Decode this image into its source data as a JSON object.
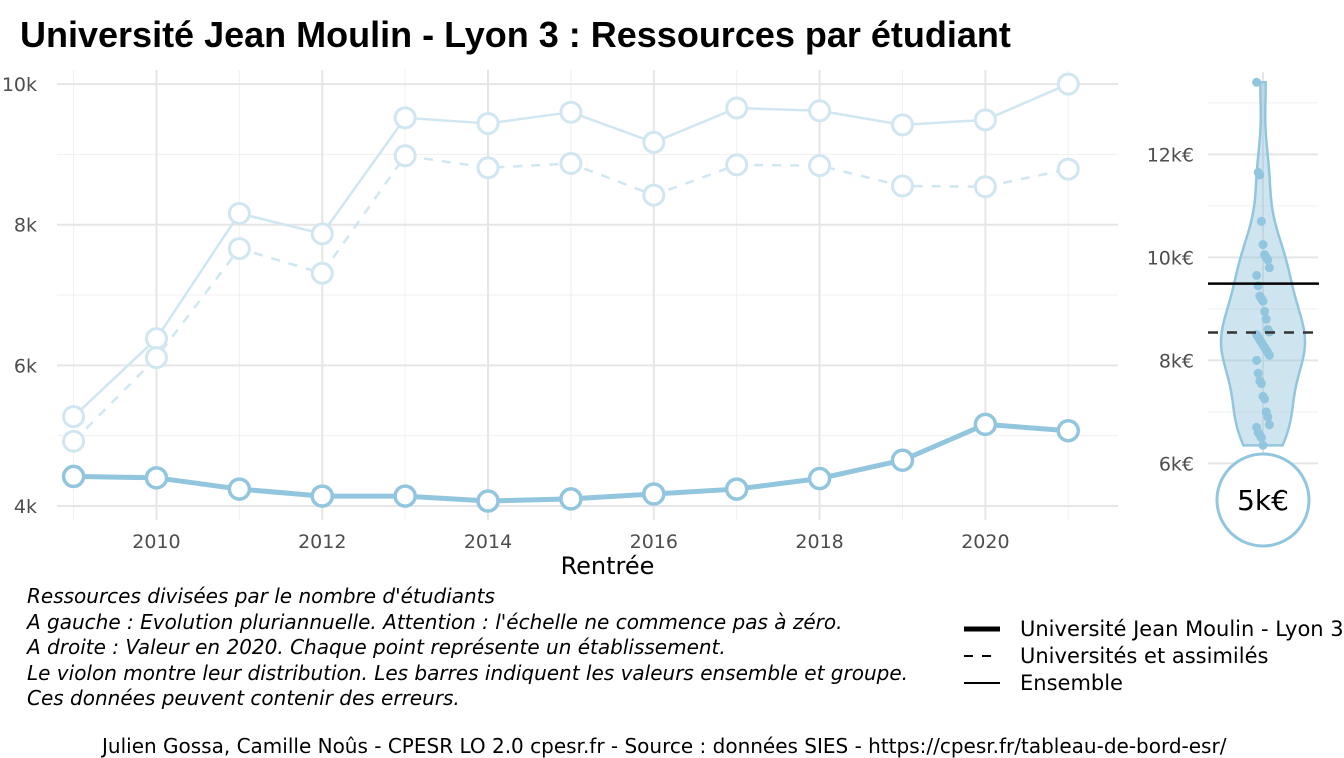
{
  "title": "Université Jean Moulin - Lyon 3  :  Ressources par étudiant",
  "chart_data": [
    {
      "type": "line",
      "xlabel": "Rentrée",
      "ylabel": "",
      "x": [
        2009,
        2010,
        2011,
        2012,
        2013,
        2014,
        2015,
        2016,
        2017,
        2018,
        2019,
        2020,
        2021
      ],
      "x_ticks": [
        "2010",
        "2012",
        "2014",
        "2016",
        "2018",
        "2020"
      ],
      "x_tick_values": [
        2010,
        2012,
        2014,
        2016,
        2018,
        2020
      ],
      "y_ticks": [
        "4k",
        "6k",
        "8k",
        "10k"
      ],
      "y_tick_values": [
        4000,
        6000,
        8000,
        10000
      ],
      "xlim": [
        2008.8,
        2021.6
      ],
      "ylim": [
        3800,
        10200
      ],
      "grid": true,
      "series": [
        {
          "name": "Ensemble",
          "style": "solid",
          "color": "#d0e6f1",
          "values": [
            5270,
            6380,
            8160,
            7870,
            9520,
            9440,
            9600,
            9170,
            9660,
            9620,
            9420,
            9490,
            10000
          ]
        },
        {
          "name": "Universités et assimilés",
          "style": "dashed",
          "color": "#d0e6f1",
          "values": [
            4920,
            6110,
            7660,
            7310,
            8980,
            8810,
            8870,
            8420,
            8850,
            8840,
            8550,
            8540,
            8790
          ]
        },
        {
          "name": "Université Jean Moulin - Lyon 3",
          "style": "bold",
          "color": "#92c5de",
          "values": [
            4420,
            4400,
            4240,
            4140,
            4140,
            4070,
            4100,
            4170,
            4240,
            4390,
            4650,
            5160,
            5070
          ]
        }
      ]
    },
    {
      "type": "scatter",
      "subtype": "violin",
      "year": "2020",
      "y_ticks": [
        "6k€",
        "8k€",
        "10k€",
        "12k€"
      ],
      "y_tick_values": [
        6000,
        8000,
        10000,
        12000
      ],
      "ylim": [
        4900,
        13600
      ],
      "grid": true,
      "points": [
        13400,
        11650,
        11600,
        10700,
        10250,
        10050,
        10000,
        9950,
        9800,
        9650,
        9450,
        9250,
        9200,
        9150,
        8950,
        8800,
        8600,
        8550,
        8500,
        8450,
        8400,
        8350,
        8300,
        8250,
        8200,
        8150,
        8100,
        8000,
        7750,
        7600,
        7550,
        7300,
        7250,
        7000,
        6900,
        6750,
        6700,
        6600,
        6550,
        6500,
        6350
      ],
      "ensemble_value": 9490,
      "group_value": 8540,
      "highlight_label": "5k€",
      "color": "#92c5de"
    }
  ],
  "notes": [
    "Ressources divisées par le nombre d'étudiants",
    "A gauche : Evolution pluriannuelle. Attention : l'échelle ne commence pas à zéro.",
    "A droite : Valeur en 2020. Chaque point représente un établissement.",
    "Le violon montre leur distribution. Les barres indiquent les valeurs ensemble et groupe.",
    "Ces données peuvent contenir des erreurs."
  ],
  "legend": [
    {
      "label": "Université Jean Moulin - Lyon 3",
      "style": "bold"
    },
    {
      "label": "Universités et assimilés",
      "style": "dashed"
    },
    {
      "label": "Ensemble",
      "style": "solid"
    }
  ],
  "caption": "Julien Gossa, Camille Noûs - CPESR LO 2.0 cpesr.fr - Source : données SIES - https://cpesr.fr/tableau-de-bord-esr/"
}
